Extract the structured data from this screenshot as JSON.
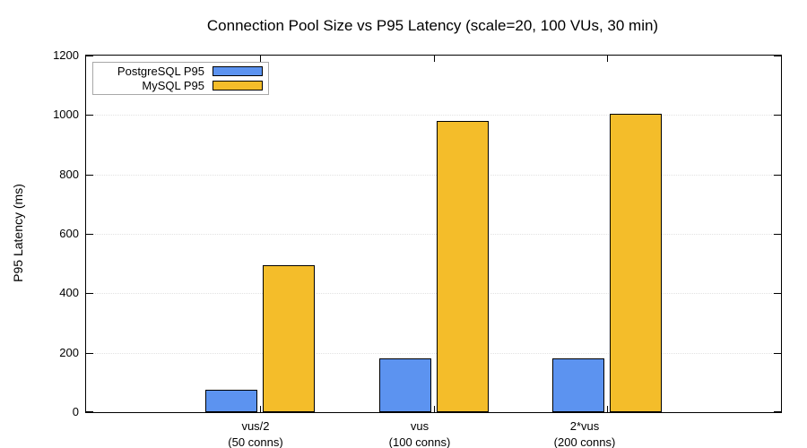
{
  "chart_data": {
    "type": "bar",
    "title": "Connection Pool Size vs P95 Latency (scale=20, 100 VUs, 30 min)",
    "xlabel": "",
    "ylabel": "P95 Latency (ms)",
    "ylim": [
      0,
      1200
    ],
    "ytick_step": 200,
    "ytick_labels": [
      "0",
      "200",
      "400",
      "600",
      "800",
      "1000",
      "1200"
    ],
    "grid": "horizontal-dotted",
    "legend_position": "top-left",
    "categories": [
      "vus/2",
      "vus",
      "2*vus"
    ],
    "category_sublabels": [
      "(50 conns)",
      "(100 conns)",
      "(200 conns)"
    ],
    "series": [
      {
        "name": "PostgreSQL P95",
        "color": "#5C93F0",
        "values": [
          75,
          180,
          180
        ]
      },
      {
        "name": "MySQL P95",
        "color": "#F4BD2A",
        "values": [
          495,
          980,
          1005
        ]
      }
    ],
    "colors": {
      "background": "#ffffff",
      "axis": "#000000",
      "gridline": "#e2e2e2",
      "bar_border": "#000000",
      "legend_border": "#a8a8a8"
    }
  }
}
